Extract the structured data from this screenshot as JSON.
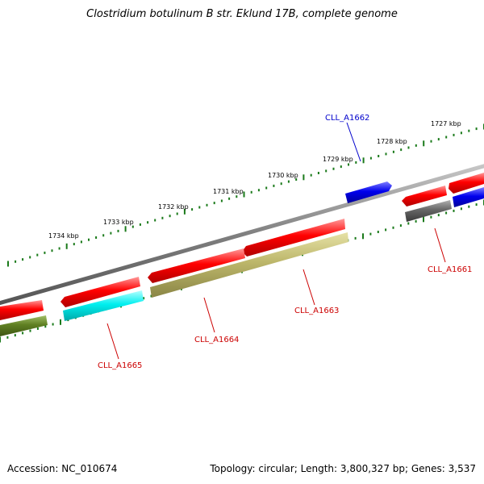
{
  "title": "Clostridium botulinum B str. Eklund 17B, complete genome",
  "footer": {
    "accession": "Accession: NC_010674",
    "summary": "Topology: circular; Length: 3,800,327 bp; Genes: 3,537"
  },
  "ticks": [
    "1727 kbp",
    "1728 kbp",
    "1729 kbp",
    "1730 kbp",
    "1731 kbp",
    "1732 kbp",
    "1733 kbp",
    "1734 kbp"
  ],
  "genes": [
    {
      "label": "CLL_A1661",
      "color": "#cc0000"
    },
    {
      "label": "CLL_A1662",
      "color": "#0000cc"
    },
    {
      "label": "CLL_A1663",
      "color": "#cc0000"
    },
    {
      "label": "CLL_A1664",
      "color": "#cc0000"
    },
    {
      "label": "CLL_A1665",
      "color": "#cc0000"
    }
  ],
  "colors": {
    "backbone": "#808080",
    "forward_cds": "#ff0000",
    "reverse_cds": "#0000ff",
    "olive_feature": "#b5b05a",
    "cyan_feature": "#00e5e5",
    "green_feature": "#5a7a20",
    "gray_feature": "#606060",
    "tick_color": "#1a7a1a"
  }
}
